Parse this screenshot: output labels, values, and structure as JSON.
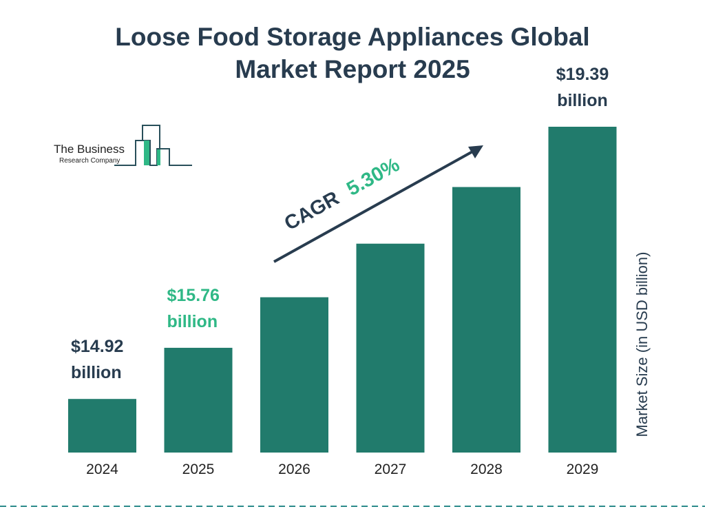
{
  "chart_data": {
    "type": "bar",
    "title": "Loose Food Storage Appliances Global Market Report 2025",
    "title_lines": [
      "Loose Food Storage Appliances Global",
      "Market Report 2025"
    ],
    "categories": [
      "2024",
      "2025",
      "2026",
      "2027",
      "2028",
      "2029"
    ],
    "values": [
      14.92,
      15.76,
      16.59,
      17.47,
      18.4,
      19.39
    ],
    "data_labels": [
      {
        "index": 0,
        "line1": "$14.92",
        "line2": "billion",
        "color": "#283c4f"
      },
      {
        "index": 1,
        "line1": "$15.76",
        "line2": "billion",
        "color": "#2fb886"
      },
      {
        "index": 5,
        "line1": "$19.39",
        "line2": "billion",
        "color": "#283c4f"
      }
    ],
    "ylabel": "Market Size (in USD billion)",
    "xlabel": "",
    "ylim": [
      14.04,
      19.39
    ],
    "grid": false,
    "bar_color": "#217b6c",
    "annotation": {
      "prefix": "CAGR",
      "value": "5.30%",
      "prefix_color": "#283c4f",
      "value_color": "#2fb886"
    }
  },
  "logo": {
    "line1": "The Business",
    "line2": "Research Company"
  },
  "colors": {
    "title": "#283c4f",
    "accent": "#2fb886",
    "dashed_line": "#2a8a8a"
  }
}
